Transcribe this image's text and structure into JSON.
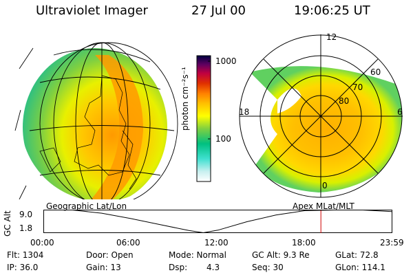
{
  "header": {
    "title": "Ultraviolet Imager",
    "date": "27 Jul 00",
    "time": "19:06:25 UT"
  },
  "colorbar": {
    "label": "photon cm⁻²s⁻¹",
    "ticks": [
      "1000",
      "100"
    ],
    "colors": [
      "#ffffff",
      "#c8f0f0",
      "#40e0d0",
      "#00c080",
      "#80d040",
      "#ffff00",
      "#ffc000",
      "#ff8000",
      "#e03000",
      "#c00040",
      "#600060",
      "#000040"
    ]
  },
  "polar": {
    "mlt_labels": [
      "12",
      "18",
      "6",
      "0"
    ],
    "lat_labels": [
      "60",
      "70",
      "80"
    ]
  },
  "timeline": {
    "left_label": "Geographic Lat/Lon",
    "right_label": "Apex MLat/MLT",
    "y_label": "GC Alt",
    "y_ticks": [
      "9.0",
      "1.8"
    ],
    "x_ticks": [
      "00:00",
      "06:00",
      "12:00",
      "18:00",
      "23:59"
    ],
    "altitude_series": {
      "hours": [
        0,
        2,
        4,
        6,
        8,
        10,
        11,
        12,
        14,
        16,
        18,
        20,
        22,
        23.98
      ],
      "re": [
        9.3,
        9.0,
        8.0,
        6.3,
        4.4,
        2.5,
        1.8,
        2.6,
        5.3,
        7.4,
        8.8,
        9.3,
        9.0,
        8.5
      ]
    },
    "current_hour": 19.1
  },
  "info": {
    "flt": "Flt: 1304",
    "ip": "IP: 36.0",
    "door": "Door: Open",
    "gain": "Gain: 13",
    "mode": "Mode: Normal",
    "dsp_label": "Dsp:",
    "dsp_value": "4.3",
    "gc_alt": "GC Alt: 9.3 Re",
    "seq": "Seq: 30",
    "glat": "GLat:  72.8",
    "glon": "GLon: 114.1"
  },
  "colors": {
    "cursor": "#d00000",
    "grid": "#000000"
  }
}
